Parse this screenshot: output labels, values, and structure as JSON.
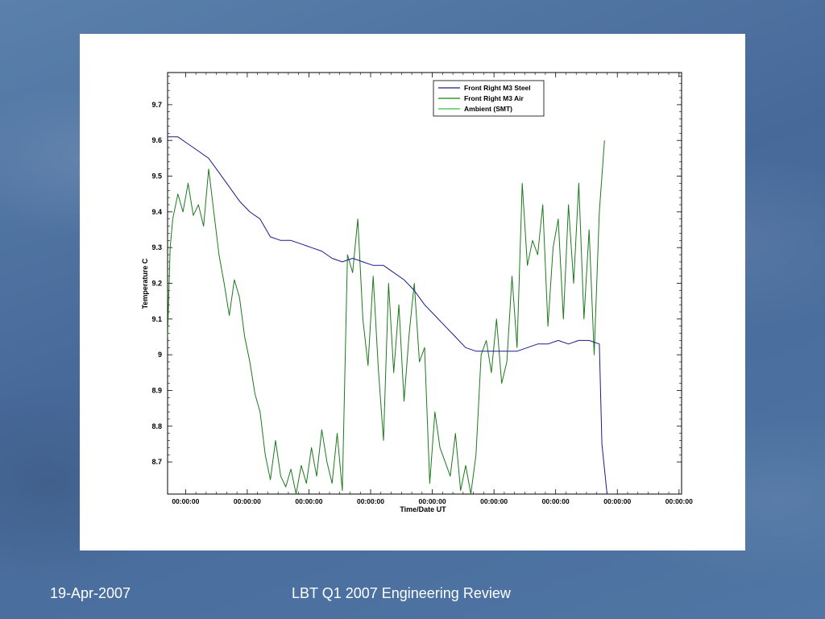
{
  "slide": {
    "footer_date": "19-Apr-2007",
    "footer_title": "LBT Q1 2007 Engineering Review",
    "background_color": "#4d73a0"
  },
  "chart_data": {
    "type": "line",
    "title": "",
    "xlabel": "Time/Date UT",
    "ylabel": "Temperature C",
    "x_tick_labels": [
      "00:00:00",
      "00:00:00",
      "00:00:00",
      "00:00:00",
      "00:00:00",
      "00:00:00",
      "00:00:00",
      "00:00:00",
      "00:00:00"
    ],
    "yticks": [
      "8.7",
      "8.8",
      "8.9",
      "9",
      "9.1",
      "9.2",
      "9.3",
      "9.4",
      "9.5",
      "9.6",
      "9.7"
    ],
    "ylim": [
      8.61,
      9.79
    ],
    "xlim": [
      0,
      100
    ],
    "grid": false,
    "legend_position": "top-right",
    "series": [
      {
        "name": "Front Right M3 Steel",
        "color": "#1a1a8c",
        "x": [
          0,
          2,
          4,
          6,
          8,
          10,
          12,
          14,
          16,
          18,
          20,
          22,
          24,
          26,
          28,
          30,
          32,
          34,
          36,
          38,
          40,
          42,
          44,
          46,
          48,
          50,
          52,
          54,
          56,
          58,
          60,
          62,
          64,
          66,
          68,
          70,
          72,
          74,
          76,
          78,
          80,
          82,
          84,
          84.5,
          85,
          85.5
        ],
        "y": [
          9.61,
          9.61,
          9.59,
          9.57,
          9.55,
          9.51,
          9.47,
          9.43,
          9.4,
          9.38,
          9.33,
          9.32,
          9.32,
          9.31,
          9.3,
          9.29,
          9.27,
          9.26,
          9.27,
          9.26,
          9.25,
          9.25,
          9.23,
          9.21,
          9.18,
          9.14,
          9.11,
          9.08,
          9.05,
          9.02,
          9.01,
          9.01,
          9.01,
          9.01,
          9.01,
          9.02,
          9.03,
          9.03,
          9.04,
          9.03,
          9.04,
          9.04,
          9.03,
          8.75,
          8.68,
          8.61
        ]
      },
      {
        "name": "Front Right M3 Air",
        "color": "#1c7a1c",
        "x": [
          0,
          0.5,
          1,
          2,
          3,
          4,
          5,
          6,
          7,
          8,
          9,
          10,
          11,
          12,
          13,
          14,
          15,
          16,
          17,
          18,
          19,
          20,
          21,
          22,
          23,
          24,
          25,
          26,
          27,
          28,
          29,
          30,
          31,
          32,
          33,
          34,
          35,
          36,
          37,
          38,
          39,
          40,
          41,
          42,
          43,
          44,
          45,
          46,
          47,
          48,
          49,
          50,
          51,
          52,
          53,
          54,
          55,
          56,
          57,
          58,
          59,
          60,
          61,
          62,
          63,
          64,
          65,
          66,
          67,
          68,
          69,
          70,
          71,
          72,
          73,
          74,
          75,
          76,
          77,
          78,
          79,
          80,
          81,
          82,
          83,
          84,
          85
        ],
        "y": [
          9.05,
          9.3,
          9.38,
          9.45,
          9.4,
          9.48,
          9.39,
          9.42,
          9.36,
          9.52,
          9.4,
          9.28,
          9.2,
          9.11,
          9.21,
          9.16,
          9.05,
          8.98,
          8.89,
          8.84,
          8.72,
          8.65,
          8.76,
          8.66,
          8.63,
          8.68,
          8.61,
          8.69,
          8.64,
          8.74,
          8.66,
          8.79,
          8.7,
          8.64,
          8.78,
          8.62,
          9.28,
          9.23,
          9.38,
          9.1,
          8.97,
          9.22,
          8.96,
          8.76,
          9.2,
          8.95,
          9.14,
          8.87,
          9.06,
          9.2,
          8.98,
          9.02,
          8.64,
          8.84,
          8.74,
          8.7,
          8.66,
          8.78,
          8.62,
          8.69,
          8.61,
          8.72,
          9.0,
          9.04,
          8.95,
          9.1,
          8.92,
          8.98,
          9.22,
          9.02,
          9.48,
          9.25,
          9.32,
          9.28,
          9.42,
          9.08,
          9.3,
          9.38,
          9.1,
          9.42,
          9.2,
          9.48,
          9.1,
          9.35,
          9.0,
          9.4,
          9.6
        ]
      },
      {
        "name": "Ambient (SMT)",
        "color": "#38c038",
        "x": [],
        "y": []
      }
    ]
  }
}
